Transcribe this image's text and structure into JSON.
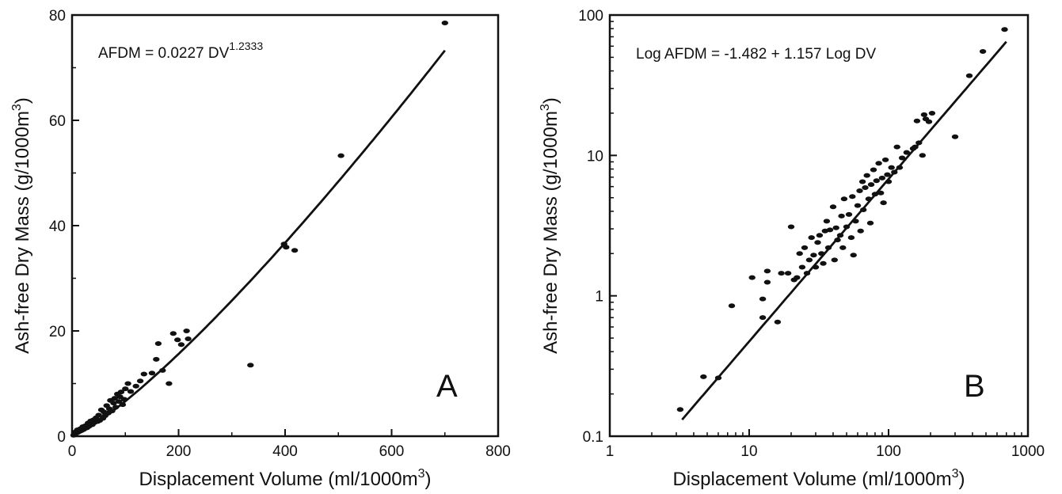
{
  "chart_data": [
    {
      "type": "scatter",
      "panel_label": "A",
      "xlabel": "Displacement Volume  (ml/1000m",
      "xlabel_sup": "3",
      "xlabel_end": ")",
      "ylabel": "Ash-free Dry Mass  (g/1000m",
      "ylabel_sup": "3",
      "ylabel_end": ")",
      "xscale": "linear",
      "yscale": "linear",
      "xlim": [
        0,
        800
      ],
      "ylim": [
        0,
        80
      ],
      "xticks": [
        0,
        200,
        400,
        600,
        800
      ],
      "yticks": [
        0,
        20,
        40,
        60,
        80
      ],
      "xtick_labels": [
        "0",
        "200",
        "400",
        "600",
        "800"
      ],
      "ytick_labels": [
        "0",
        "20",
        "40",
        "60",
        "80"
      ],
      "equation_text": "AFDM = 0.0227 DV",
      "equation_sup": "1.2333",
      "fit": {
        "form": "power",
        "a": 0.0227,
        "b": 1.2333,
        "x_range": [
          1,
          700
        ]
      },
      "points": [
        [
          700,
          78.5
        ],
        [
          505,
          53.3
        ],
        [
          398,
          36.5
        ],
        [
          402,
          35.9
        ],
        [
          418,
          35.3
        ],
        [
          335,
          13.5
        ],
        [
          190,
          19.5
        ],
        [
          198,
          18.3
        ],
        [
          205,
          17.4
        ],
        [
          215,
          20
        ],
        [
          218,
          18.5
        ],
        [
          162,
          17.6
        ],
        [
          158,
          14.6
        ],
        [
          182,
          10
        ],
        [
          170,
          12.5
        ],
        [
          150,
          12
        ],
        [
          135,
          11.8
        ],
        [
          128,
          10.5
        ],
        [
          120,
          9.5
        ],
        [
          110,
          8.5
        ],
        [
          105,
          10
        ],
        [
          100,
          9
        ],
        [
          98,
          7
        ],
        [
          95,
          6
        ],
        [
          92,
          8.4
        ],
        [
          90,
          7.5
        ],
        [
          88,
          6.6
        ],
        [
          85,
          8
        ],
        [
          82,
          5.5
        ],
        [
          80,
          7.2
        ],
        [
          78,
          6.3
        ],
        [
          75,
          4.8
        ],
        [
          72,
          6.8
        ],
        [
          70,
          5.2
        ],
        [
          68,
          4.4
        ],
        [
          65,
          5.8
        ],
        [
          62,
          3.9
        ],
        [
          60,
          4.6
        ],
        [
          58,
          3.4
        ],
        [
          55,
          5
        ],
        [
          52,
          3
        ],
        [
          50,
          4
        ],
        [
          48,
          2.8
        ],
        [
          45,
          3.5
        ],
        [
          42,
          2.6
        ],
        [
          40,
          3.1
        ],
        [
          38,
          2.2
        ],
        [
          35,
          2.9
        ],
        [
          32,
          1.9
        ],
        [
          30,
          2.5
        ],
        [
          28,
          1.6
        ],
        [
          25,
          2
        ],
        [
          22,
          1.3
        ],
        [
          20,
          1.8
        ],
        [
          18,
          1.1
        ],
        [
          15,
          1.4
        ],
        [
          12,
          0.9
        ],
        [
          10,
          1.2
        ],
        [
          8,
          0.6
        ],
        [
          6,
          0.8
        ],
        [
          4,
          0.3
        ],
        [
          3,
          0.2
        ]
      ]
    },
    {
      "type": "scatter",
      "panel_label": "B",
      "xlabel": "Displacement Volume  (ml/1000m",
      "xlabel_sup": "3",
      "xlabel_end": ")",
      "ylabel": "Ash-free Dry Mass  (g/1000m",
      "ylabel_sup": "3",
      "ylabel_end": ")",
      "xscale": "log",
      "yscale": "log",
      "xlim": [
        1,
        1000
      ],
      "ylim": [
        0.1,
        100
      ],
      "xticks": [
        1,
        10,
        100,
        1000
      ],
      "yticks": [
        0.1,
        1,
        10,
        100
      ],
      "xtick_labels": [
        "1",
        "10",
        "100",
        "1000"
      ],
      "ytick_labels": [
        "0.1",
        "1",
        "10",
        "100"
      ],
      "equation_text": "Log AFDM = -1.482 + 1.157 Log DV",
      "fit": {
        "form": "loglinear",
        "intercept": -1.482,
        "slope": 1.157,
        "x_range": [
          3.3,
          700
        ]
      },
      "points": [
        [
          3.2,
          0.155
        ],
        [
          4.7,
          0.265
        ],
        [
          6,
          0.26
        ],
        [
          7.5,
          0.85
        ],
        [
          10.5,
          1.35
        ],
        [
          12.5,
          0.7
        ],
        [
          12.5,
          0.95
        ],
        [
          13.5,
          1.5
        ],
        [
          13.5,
          1.25
        ],
        [
          16,
          0.65
        ],
        [
          17,
          1.45
        ],
        [
          19,
          1.45
        ],
        [
          20,
          3.1
        ],
        [
          21,
          1.3
        ],
        [
          22,
          1.35
        ],
        [
          23,
          2
        ],
        [
          24,
          1.6
        ],
        [
          25,
          2.2
        ],
        [
          26,
          1.45
        ],
        [
          27,
          1.8
        ],
        [
          28,
          2.6
        ],
        [
          29,
          1.95
        ],
        [
          30,
          1.6
        ],
        [
          31,
          2.4
        ],
        [
          32,
          2.7
        ],
        [
          33,
          2
        ],
        [
          34,
          1.7
        ],
        [
          35,
          2.9
        ],
        [
          36,
          3.4
        ],
        [
          37,
          2.2
        ],
        [
          38,
          2.95
        ],
        [
          40,
          4.3
        ],
        [
          41,
          1.8
        ],
        [
          42,
          3.05
        ],
        [
          43,
          2.5
        ],
        [
          45,
          2.7
        ],
        [
          46,
          3.7
        ],
        [
          47,
          2.2
        ],
        [
          48,
          4.9
        ],
        [
          50,
          3.1
        ],
        [
          52,
          3.8
        ],
        [
          54,
          2.6
        ],
        [
          55,
          5.1
        ],
        [
          56,
          1.95
        ],
        [
          58,
          3.4
        ],
        [
          60,
          4.4
        ],
        [
          62,
          5.6
        ],
        [
          63,
          2.9
        ],
        [
          65,
          6.5
        ],
        [
          66,
          4.1
        ],
        [
          68,
          5.9
        ],
        [
          70,
          7.2
        ],
        [
          72,
          4.9
        ],
        [
          74,
          3.3
        ],
        [
          75,
          6.2
        ],
        [
          78,
          7.9
        ],
        [
          80,
          5.3
        ],
        [
          82,
          6.6
        ],
        [
          85,
          8.8
        ],
        [
          88,
          5.4
        ],
        [
          90,
          6.9
        ],
        [
          92,
          4.6
        ],
        [
          95,
          9.3
        ],
        [
          98,
          7.3
        ],
        [
          100,
          6.5
        ],
        [
          105,
          8.2
        ],
        [
          110,
          7.6
        ],
        [
          115,
          11.5
        ],
        [
          120,
          8.2
        ],
        [
          125,
          9.6
        ],
        [
          135,
          10.5
        ],
        [
          150,
          11.2
        ],
        [
          155,
          11.5
        ],
        [
          160,
          17.6
        ],
        [
          165,
          12.3
        ],
        [
          175,
          10
        ],
        [
          180,
          19.5
        ],
        [
          185,
          18.2
        ],
        [
          195,
          17.4
        ],
        [
          205,
          20
        ],
        [
          300,
          13.6
        ],
        [
          380,
          37
        ],
        [
          475,
          55
        ],
        [
          680,
          79
        ]
      ]
    }
  ]
}
